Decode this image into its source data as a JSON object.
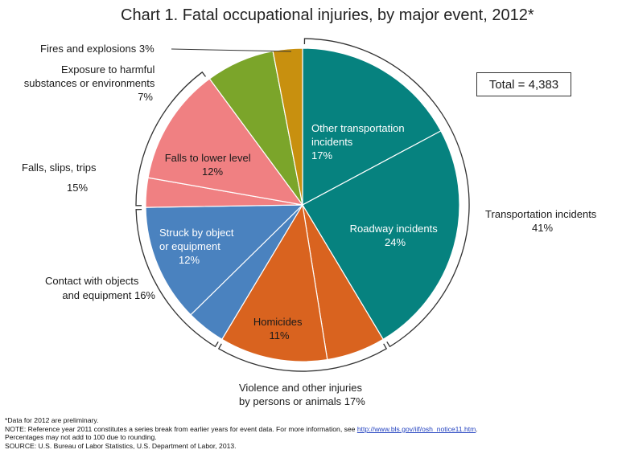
{
  "title": "Chart 1. Fatal occupational injuries, by major event, 2012*",
  "total_label": "Total = 4,383",
  "chart_data": {
    "type": "pie",
    "title": "Chart 1. Fatal occupational injuries, by major event, 2012*",
    "slices": [
      {
        "label": "Other transportation incidents",
        "value": 17,
        "display": "17%",
        "color": "#06827f"
      },
      {
        "label": "Roadway incidents",
        "value": 24,
        "display": "24%",
        "color": "#06827f"
      },
      {
        "label": "Violence (other)",
        "value": 6,
        "display": "",
        "color": "#d9631f"
      },
      {
        "label": "Homicides",
        "value": 11,
        "display": "11%",
        "color": "#d9631f"
      },
      {
        "label": "Contact (other)",
        "value": 4,
        "display": "",
        "color": "#4a82bf"
      },
      {
        "label": "Struck by object or equipment",
        "value": 12,
        "display": "12%",
        "color": "#4a82bf"
      },
      {
        "label": "Falls (other)",
        "value": 3,
        "display": "",
        "color": "#f08082"
      },
      {
        "label": "Falls to lower level",
        "value": 12,
        "display": "12%",
        "color": "#f08082"
      },
      {
        "label": "Exposure to harmful substances or environments",
        "value": 7,
        "display": "7%",
        "color": "#7ba52a"
      },
      {
        "label": "Fires and explosions",
        "value": 3,
        "display": "3%",
        "color": "#c8900f"
      }
    ],
    "groups": [
      {
        "label": "Transportation incidents",
        "value": 41,
        "display": "41%"
      },
      {
        "label": "Violence and other injuries by persons or animals",
        "value": 17,
        "display": "17%"
      },
      {
        "label": "Contact with objects and equipment",
        "value": 16,
        "display": "16%"
      },
      {
        "label": "Falls, slips, trips",
        "value": 15,
        "display": "15%"
      },
      {
        "label": "Exposure to harmful substances or environments",
        "value": 7,
        "display": "7%"
      },
      {
        "label": "Fires and explosions",
        "value": 3,
        "display": "3%"
      }
    ],
    "total": 4383
  },
  "inner_labels": {
    "other_transport": [
      "Other transportation",
      "incidents",
      "17%"
    ],
    "roadway": [
      "Roadway incidents",
      "24%"
    ],
    "homicides": [
      "Homicides",
      "11%"
    ],
    "struck": [
      "Struck by object",
      "or equipment",
      "12%"
    ],
    "falls_lower": [
      "Falls to lower level",
      "12%"
    ]
  },
  "outer_labels": {
    "fires": "Fires and explosions  3%",
    "exposure": [
      "Exposure to harmful",
      "substances or environments",
      "7%"
    ],
    "falls": [
      "Falls, slips, trips",
      "15%"
    ],
    "transport": [
      "Transportation incidents",
      "41%"
    ],
    "contact": [
      "Contact with objects",
      "and equipment 16%"
    ],
    "violence": [
      "Violence and other injuries",
      "by persons or animals  17%"
    ]
  },
  "notes": {
    "data_note": "*Data for 2012 are preliminary.",
    "note_prefix": "NOTE: Reference year 2011 constitutes a series break from earlier years for event data. For more information, see ",
    "note_link": "http://www.bls.gov/iif/osh_notice11.htm",
    "note_suffix": ".",
    "rounding": "Percentages may not add to 100 due to rounding.",
    "source": "SOURCE: U.S. Bureau of Labor Statistics, U.S. Department of Labor, 2013."
  }
}
